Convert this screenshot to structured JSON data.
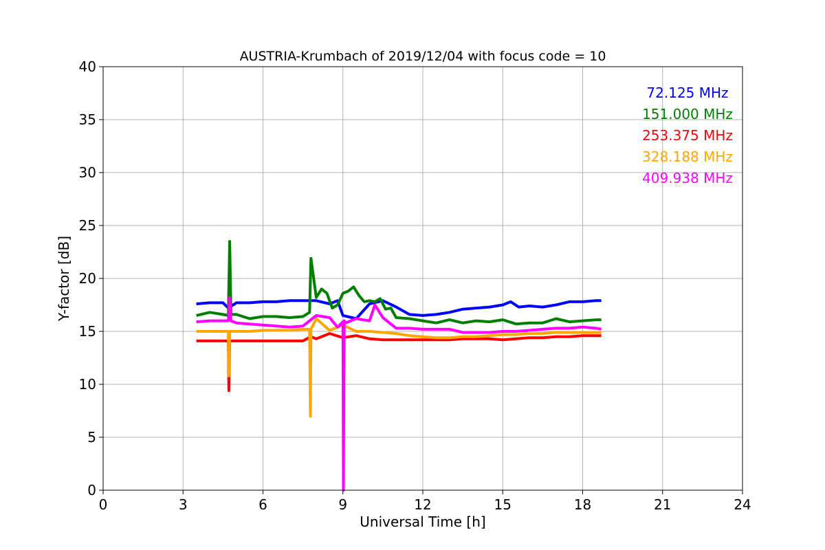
{
  "chart_data": {
    "type": "line",
    "title": "AUSTRIA-Krumbach of 2019/12/04 with focus code = 10",
    "xlabel": "Universal Time [h]",
    "ylabel": "Y-factor [dB]",
    "xlim": [
      0,
      24
    ],
    "ylim": [
      0,
      40
    ],
    "xticks": [
      "0",
      "3",
      "6",
      "9",
      "12",
      "15",
      "18",
      "21",
      "24"
    ],
    "yticks": [
      "0",
      "5",
      "10",
      "15",
      "20",
      "25",
      "30",
      "35",
      "40"
    ],
    "grid": true,
    "legend_position": "top-right",
    "series": [
      {
        "name": "72.125 MHz",
        "color": "#0000ff",
        "x": [
          3.5,
          4.0,
          4.5,
          4.7,
          5.0,
          5.5,
          6.0,
          6.5,
          7.0,
          7.5,
          8.0,
          8.5,
          8.8,
          9.0,
          9.5,
          10.0,
          10.5,
          11.0,
          11.5,
          12.0,
          12.5,
          13.0,
          13.5,
          14.0,
          14.5,
          15.0,
          15.3,
          15.6,
          16.0,
          16.5,
          17.0,
          17.5,
          18.0,
          18.5,
          18.7
        ],
        "y": [
          17.6,
          17.7,
          17.7,
          17.2,
          17.7,
          17.7,
          17.8,
          17.8,
          17.9,
          17.9,
          17.9,
          17.6,
          17.9,
          16.5,
          16.2,
          17.6,
          17.9,
          17.3,
          16.6,
          16.5,
          16.6,
          16.8,
          17.1,
          17.2,
          17.3,
          17.5,
          17.8,
          17.3,
          17.4,
          17.3,
          17.5,
          17.8,
          17.8,
          17.9,
          17.9
        ]
      },
      {
        "name": "151.000 MHz",
        "color": "#008000",
        "x": [
          3.5,
          4.0,
          4.5,
          4.7,
          4.75,
          4.8,
          5.0,
          5.5,
          6.0,
          6.5,
          7.0,
          7.5,
          7.75,
          7.8,
          8.0,
          8.2,
          8.4,
          8.6,
          8.8,
          9.0,
          9.2,
          9.4,
          9.6,
          9.8,
          10.0,
          10.2,
          10.4,
          10.6,
          10.8,
          11.0,
          11.5,
          12.0,
          12.5,
          13.0,
          13.5,
          14.0,
          14.5,
          15.0,
          15.5,
          16.0,
          16.5,
          17.0,
          17.5,
          18.0,
          18.5,
          18.7
        ],
        "y": [
          16.5,
          16.8,
          16.6,
          16.5,
          23.5,
          16.6,
          16.6,
          16.2,
          16.4,
          16.4,
          16.3,
          16.4,
          16.8,
          21.9,
          18.2,
          19.0,
          18.6,
          17.2,
          17.5,
          18.6,
          18.8,
          19.2,
          18.4,
          17.8,
          17.9,
          17.8,
          18.1,
          17.1,
          17.2,
          16.3,
          16.2,
          16.0,
          15.8,
          16.1,
          15.8,
          16.0,
          15.9,
          16.1,
          15.7,
          15.8,
          15.8,
          16.2,
          15.9,
          16.0,
          16.1,
          16.1
        ]
      },
      {
        "name": "253.375 MHz",
        "color": "#ff0000",
        "x": [
          3.5,
          4.0,
          4.5,
          4.7,
          4.72,
          4.75,
          5.0,
          5.5,
          6.0,
          6.5,
          7.0,
          7.5,
          7.8,
          8.0,
          8.5,
          9.0,
          9.5,
          10.0,
          10.5,
          11.0,
          11.5,
          12.0,
          12.5,
          13.0,
          13.5,
          14.0,
          14.5,
          15.0,
          15.5,
          16.0,
          16.5,
          17.0,
          17.5,
          18.0,
          18.5,
          18.7
        ],
        "y": [
          14.1,
          14.1,
          14.1,
          14.1,
          9.4,
          14.1,
          14.1,
          14.1,
          14.1,
          14.1,
          14.1,
          14.1,
          14.5,
          14.3,
          14.8,
          14.4,
          14.6,
          14.3,
          14.2,
          14.2,
          14.2,
          14.2,
          14.2,
          14.2,
          14.3,
          14.3,
          14.3,
          14.2,
          14.3,
          14.4,
          14.4,
          14.5,
          14.5,
          14.6,
          14.6,
          14.6
        ]
      },
      {
        "name": "328.188 MHz",
        "color": "#ffa500",
        "x": [
          3.5,
          4.0,
          4.5,
          4.7,
          4.72,
          4.75,
          5.0,
          5.5,
          6.0,
          6.5,
          7.0,
          7.5,
          7.75,
          7.78,
          7.8,
          8.0,
          8.5,
          9.0,
          9.5,
          10.0,
          10.5,
          11.0,
          11.5,
          12.0,
          12.5,
          13.0,
          13.5,
          14.0,
          14.5,
          15.0,
          15.5,
          16.0,
          16.5,
          17.0,
          17.5,
          18.0,
          18.5,
          18.7
        ],
        "y": [
          15.0,
          15.0,
          15.0,
          15.0,
          10.8,
          15.0,
          15.0,
          15.0,
          15.1,
          15.1,
          15.1,
          15.2,
          15.2,
          7.0,
          15.2,
          16.2,
          15.1,
          15.6,
          15.0,
          15.0,
          14.9,
          14.8,
          14.6,
          14.5,
          14.4,
          14.4,
          14.5,
          14.5,
          14.6,
          14.7,
          14.7,
          14.8,
          14.8,
          14.9,
          14.9,
          14.9,
          14.9,
          14.9
        ]
      },
      {
        "name": "409.938 MHz",
        "color": "#ff00ff",
        "x": [
          3.5,
          4.0,
          4.5,
          4.7,
          4.75,
          4.8,
          5.0,
          5.5,
          6.0,
          6.5,
          7.0,
          7.5,
          8.0,
          8.5,
          8.8,
          9.0,
          9.02,
          9.05,
          9.1,
          9.5,
          10.0,
          10.2,
          10.5,
          11.0,
          11.5,
          12.0,
          12.5,
          13.0,
          13.5,
          14.0,
          14.5,
          15.0,
          15.5,
          16.0,
          16.5,
          17.0,
          17.5,
          18.0,
          18.5,
          18.7
        ],
        "y": [
          15.9,
          16.0,
          16.0,
          16.0,
          18.2,
          16.0,
          15.8,
          15.7,
          15.6,
          15.5,
          15.4,
          15.5,
          16.5,
          16.3,
          15.4,
          15.9,
          0.0,
          16.0,
          15.8,
          16.2,
          16.0,
          17.5,
          16.3,
          15.3,
          15.3,
          15.2,
          15.2,
          15.2,
          14.9,
          14.9,
          14.9,
          15.0,
          15.0,
          15.1,
          15.2,
          15.3,
          15.3,
          15.4,
          15.3,
          15.2
        ]
      }
    ]
  }
}
